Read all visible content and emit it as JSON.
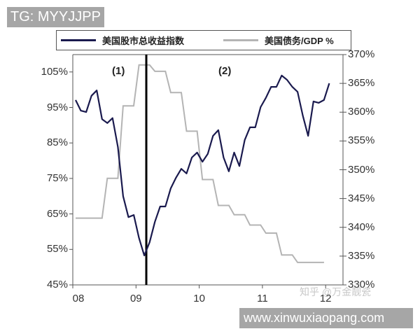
{
  "badge": {
    "text": "TG: MYYJJPP"
  },
  "watermark": {
    "zhihu": "知乎 @万金靓瓷",
    "site": "www.xinwuxiaopang.com"
  },
  "colors": {
    "stock_line": "#1a1a4e",
    "debt_line": "#b4b4b4",
    "event_line": "#000000",
    "axis": "#555555"
  },
  "chart_data": {
    "type": "line",
    "title": "",
    "xlabel": "",
    "ylabel_left": "",
    "ylabel_right": "",
    "legend_position": "top",
    "grid": false,
    "x_ticks": [
      "08",
      "09",
      "10",
      "11",
      "12"
    ],
    "y_left_ticks": [
      "105%",
      "95%",
      "85%",
      "75%",
      "65%",
      "55%",
      "45%"
    ],
    "y_left_range": [
      45,
      110
    ],
    "y_right_ticks": [
      "370%",
      "365%",
      "360%",
      "355%",
      "350%",
      "345%",
      "340%",
      "335%",
      "330%"
    ],
    "y_right_range": [
      330,
      370
    ],
    "annotations": [
      {
        "text": "(1)",
        "x": "2008-09",
        "note": "region before vertical line"
      },
      {
        "text": "(2)",
        "x": "2010-02",
        "note": "region after vertical line"
      }
    ],
    "event_line_x": "2009-03",
    "series": [
      {
        "name": "美国股市总收益指数",
        "axis": "left",
        "unit": "%",
        "x": [
          "2008-01",
          "2008-02",
          "2008-03",
          "2008-04",
          "2008-05",
          "2008-06",
          "2008-07",
          "2008-08",
          "2008-09",
          "2008-10",
          "2008-11",
          "2008-12",
          "2009-01",
          "2009-02",
          "2009-03",
          "2009-04",
          "2009-05",
          "2009-06",
          "2009-07",
          "2009-08",
          "2009-09",
          "2009-10",
          "2009-11",
          "2009-12",
          "2010-01",
          "2010-02",
          "2010-03",
          "2010-04",
          "2010-05",
          "2010-06",
          "2010-07",
          "2010-08",
          "2010-09",
          "2010-10",
          "2010-11",
          "2010-12",
          "2011-01",
          "2011-02",
          "2011-03",
          "2011-04",
          "2011-05",
          "2011-06",
          "2011-07",
          "2011-08",
          "2011-09",
          "2011-10",
          "2011-11",
          "2011-12",
          "2012-01"
        ],
        "values": [
          97.1,
          94.1,
          93.7,
          98.3,
          99.8,
          91.7,
          90.6,
          92.0,
          83.9,
          70.0,
          64.1,
          64.7,
          58.2,
          53.3,
          57.0,
          62.8,
          67.1,
          67.1,
          72.2,
          75.2,
          77.7,
          76.4,
          80.9,
          82.3,
          79.7,
          81.9,
          87.0,
          88.6,
          80.9,
          77.0,
          82.3,
          78.5,
          85.8,
          89.4,
          89.4,
          95.1,
          97.7,
          100.8,
          100.8,
          104.0,
          102.8,
          100.8,
          99.4,
          92.7,
          87.0,
          96.7,
          96.3,
          97.1,
          101.8
        ]
      },
      {
        "name": "美国债务/GDP %",
        "axis": "right",
        "unit": "%",
        "step": true,
        "x": [
          "2008-Q1",
          "2008-Q2",
          "2008-Q3",
          "2008-Q4",
          "2009-Q1",
          "2009-Q2",
          "2009-Q3",
          "2009-Q4",
          "2010-Q1",
          "2010-Q2",
          "2010-Q3",
          "2010-Q4",
          "2011-Q1",
          "2011-Q2",
          "2011-Q3",
          "2011-Q4"
        ],
        "values": [
          341.6,
          341.6,
          348.5,
          361.1,
          368.2,
          367.1,
          363.4,
          356.7,
          348.3,
          343.8,
          342.2,
          340.4,
          339.0,
          335.2,
          333.9,
          333.9
        ]
      }
    ]
  },
  "legend": {
    "items": [
      {
        "label": "美国股市总收益指数"
      },
      {
        "label": "美国债务/GDP %"
      }
    ]
  }
}
